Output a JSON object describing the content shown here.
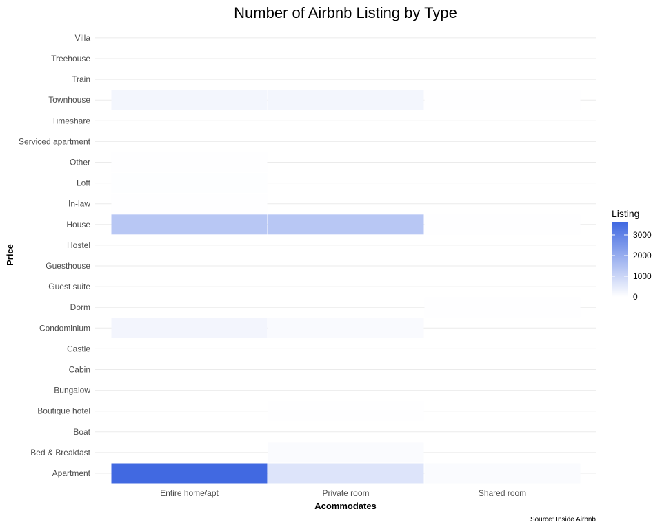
{
  "chart_data": {
    "type": "heatmap",
    "title": "Number of Airbnb Listing by Type",
    "xlabel": "Acommodates",
    "ylabel": "Price",
    "caption": "Source: Inside Airbnb",
    "x_categories": [
      "Entire home/apt",
      "Private room",
      "Shared room"
    ],
    "y_categories": [
      "Apartment",
      "Bed & Breakfast",
      "Boat",
      "Boutique hotel",
      "Bungalow",
      "Cabin",
      "Castle",
      "Condominium",
      "Dorm",
      "Guest suite",
      "Guesthouse",
      "Hostel",
      "House",
      "In-law",
      "Loft",
      "Other",
      "Serviced apartment",
      "Timeshare",
      "Townhouse",
      "Train",
      "Treehouse",
      "Villa"
    ],
    "cells": [
      {
        "x": "Entire home/apt",
        "y": "Apartment",
        "value": 3600
      },
      {
        "x": "Private room",
        "y": "Apartment",
        "value": 650
      },
      {
        "x": "Shared room",
        "y": "Apartment",
        "value": 90
      },
      {
        "x": "Private room",
        "y": "Bed & Breakfast",
        "value": 90
      },
      {
        "x": "Private room",
        "y": "Boutique hotel",
        "value": 25
      },
      {
        "x": "Entire home/apt",
        "y": "Condominium",
        "value": 230
      },
      {
        "x": "Private room",
        "y": "Condominium",
        "value": 110
      },
      {
        "x": "Shared room",
        "y": "Dorm",
        "value": 15
      },
      {
        "x": "Entire home/apt",
        "y": "House",
        "value": 1350
      },
      {
        "x": "Private room",
        "y": "House",
        "value": 1350
      },
      {
        "x": "Shared room",
        "y": "House",
        "value": 20
      },
      {
        "x": "Entire home/apt",
        "y": "In-law",
        "value": 25
      },
      {
        "x": "Entire home/apt",
        "y": "Loft",
        "value": 35
      },
      {
        "x": "Entire home/apt",
        "y": "Other",
        "value": 20
      },
      {
        "x": "Entire home/apt",
        "y": "Townhouse",
        "value": 220
      },
      {
        "x": "Private room",
        "y": "Townhouse",
        "value": 220
      },
      {
        "x": "Shared room",
        "y": "Townhouse",
        "value": 20
      }
    ],
    "legend": {
      "title": "Listing",
      "ticks": [
        0,
        1000,
        2000,
        3000
      ],
      "range": [
        0,
        3600
      ],
      "low_color": "#ffffff",
      "high_color": "#4169e1"
    },
    "grid": true,
    "legend_position": "right"
  }
}
